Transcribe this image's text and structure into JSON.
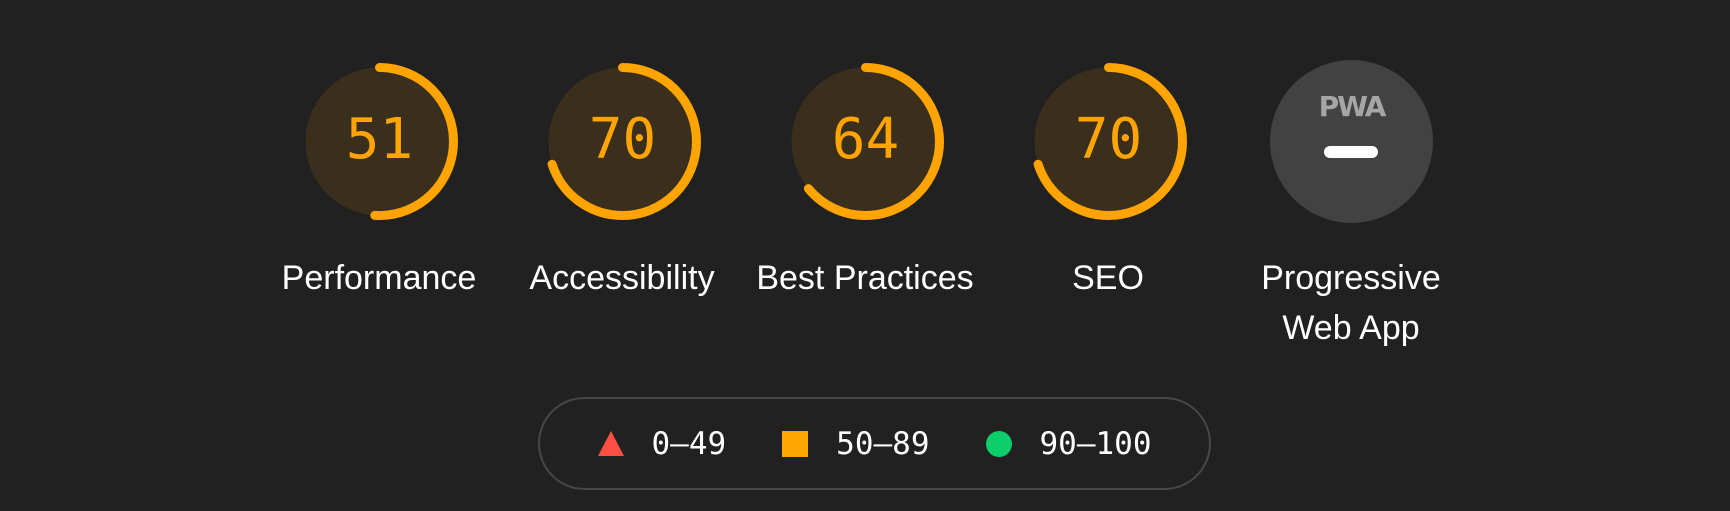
{
  "colors": {
    "background": "#212121",
    "average": "#ffa400",
    "average_fill": "#3a2e1c",
    "fail": "#ff4e42",
    "pass": "#0cce6b",
    "pwa_fill": "#424242"
  },
  "categories": [
    {
      "label": "Performance",
      "score": 51
    },
    {
      "label": "Accessibility",
      "score": 70
    },
    {
      "label": "Best Practices",
      "score": 64
    },
    {
      "label": "SEO",
      "score": 70
    }
  ],
  "pwa": {
    "label": "Progressive Web App",
    "badge": "PWA",
    "icon": "pwa-badge-icon",
    "status_icon": "dash-icon"
  },
  "legend": [
    {
      "shape": "triangle-icon",
      "range": "0–49"
    },
    {
      "shape": "square-icon",
      "range": "50–89"
    },
    {
      "shape": "circle-icon",
      "range": "90–100"
    }
  ]
}
